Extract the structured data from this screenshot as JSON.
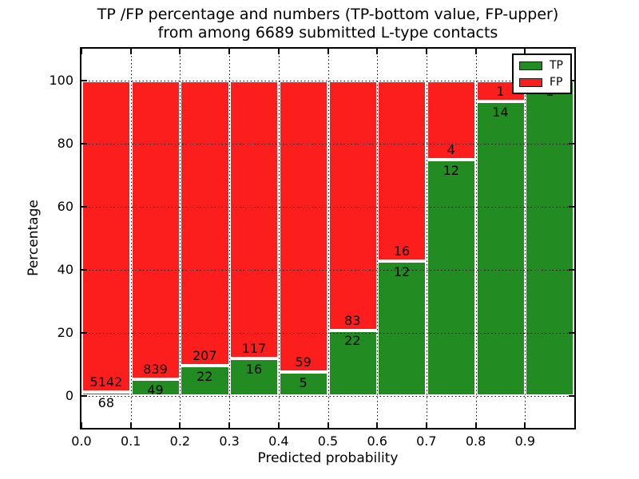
{
  "title": {
    "line1": "TP /FP percentage and numbers (TP-bottom value, FP-upper)",
    "line2": "from among 6689 submitted L-type contacts"
  },
  "axes": {
    "x_label": "Predicted probability",
    "y_label": "Percentage",
    "x_tick_labels": [
      "0.0",
      "0.1",
      "0.2",
      "0.3",
      "0.4",
      "0.5",
      "0.6",
      "0.7",
      "0.8",
      "0.9"
    ],
    "y_tick_labels": [
      "0",
      "20",
      "40",
      "60",
      "80",
      "100"
    ],
    "y_tick_values": [
      0,
      20,
      40,
      60,
      80,
      100
    ],
    "grid": "dotted, on top of bars"
  },
  "legend": {
    "position": "upper right",
    "entries": [
      {
        "label": "TP",
        "color": "#228B22"
      },
      {
        "label": "FP",
        "color": "#FC1D1D"
      }
    ]
  },
  "colors": {
    "tp_green": "#228B22",
    "fp_red": "#FC1D1D",
    "bar_edge": "#ffffff",
    "text": "#000000"
  },
  "chart_data": {
    "type": "bar",
    "stacked": true,
    "normalized_to": 100,
    "title": "TP /FP percentage and numbers (TP-bottom value, FP-upper) from among 6689 submitted L-type contacts",
    "xlabel": "Predicted probability",
    "ylabel": "Percentage",
    "xlim": [
      0.0,
      1.0
    ],
    "ylim": [
      -10,
      110
    ],
    "bin_width": 0.1,
    "categories": [
      "0.0-0.1",
      "0.1-0.2",
      "0.2-0.3",
      "0.3-0.4",
      "0.4-0.5",
      "0.5-0.6",
      "0.6-0.7",
      "0.7-0.8",
      "0.8-0.9",
      "0.9-1.0"
    ],
    "series": [
      {
        "name": "TP",
        "color": "#228B22",
        "counts": [
          68,
          49,
          22,
          16,
          5,
          22,
          12,
          12,
          14,
          1
        ]
      },
      {
        "name": "FP",
        "color": "#FC1D1D",
        "counts": [
          5142,
          839,
          207,
          117,
          59,
          83,
          16,
          4,
          1,
          null
        ]
      }
    ],
    "tp_percentages": [
      1.31,
      5.52,
      9.61,
      12.03,
      7.81,
      20.95,
      42.86,
      75.0,
      93.33,
      100.0
    ],
    "annotation_rule": "FP count printed just above the TP/FP boundary, TP count just below it; last bin shows only TP count 1"
  }
}
